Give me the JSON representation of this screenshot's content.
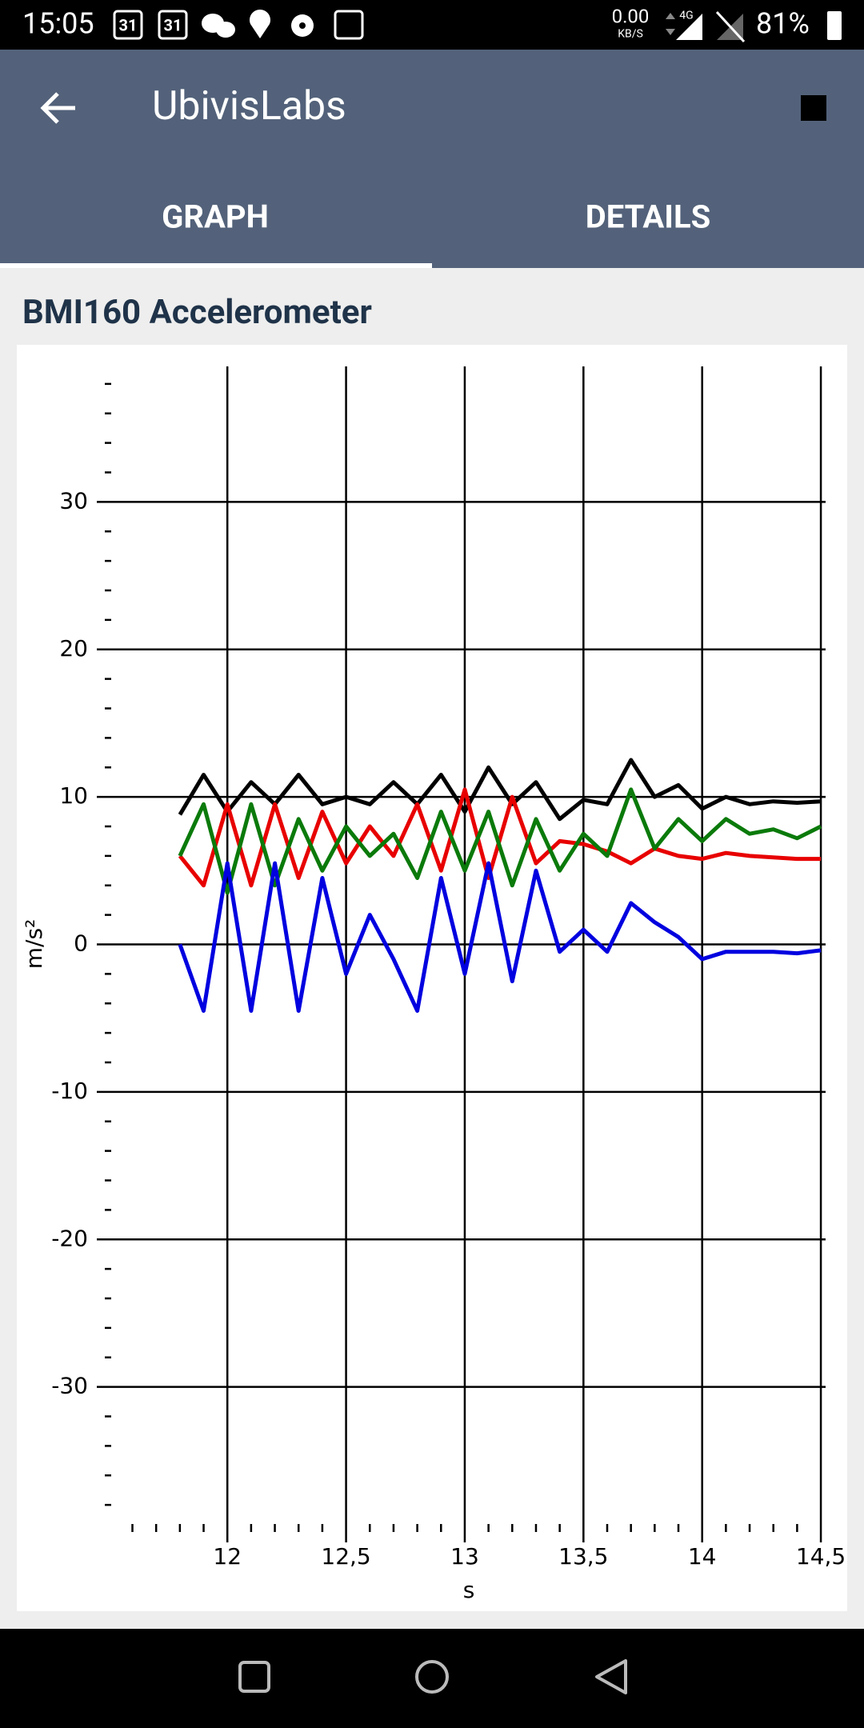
{
  "status_bar": {
    "time": "15:05",
    "calendar_day": "31",
    "net_speed": "0.00",
    "net_unit": "KB/S",
    "network": "4G",
    "battery": "81%"
  },
  "app_bar": {
    "title": "UbivisLabs"
  },
  "tabs": [
    "GRAPH",
    "DETAILS"
  ],
  "chart_data": {
    "type": "line",
    "title": "BMI160 Accelerometer",
    "xlabel": "s",
    "ylabel": "m/s²",
    "grid": true,
    "xlim": [
      11.45,
      14.52
    ],
    "ylim": [
      -40,
      40
    ],
    "xticks": [
      12,
      {
        "value": 12.5,
        "label": "12,5"
      },
      13,
      {
        "value": 13.5,
        "label": "13,5"
      },
      14,
      {
        "value": 14.5,
        "label": "14,5"
      }
    ],
    "yticks": [
      30,
      20,
      10,
      0,
      -10,
      -20,
      -30
    ],
    "xminorticks": [
      11.6,
      11.7,
      11.8,
      11.9,
      12.1,
      12.2,
      12.3,
      12.4,
      12.6,
      12.7,
      12.8,
      12.9,
      13.1,
      13.2,
      13.3,
      13.4,
      13.6,
      13.7,
      13.8,
      13.9,
      14.1,
      14.2,
      14.3,
      14.4
    ],
    "yminorticks": [
      38,
      36,
      34,
      32,
      28,
      26,
      24,
      22,
      18,
      16,
      14,
      12,
      8,
      6,
      4,
      2,
      -2,
      -4,
      -6,
      -8,
      -12,
      -14,
      -16,
      -18,
      -22,
      -24,
      -26,
      -28,
      -32,
      -34,
      -36,
      -38
    ],
    "x": [
      11.8,
      11.9,
      12.0,
      12.1,
      12.2,
      12.3,
      12.4,
      12.5,
      12.6,
      12.7,
      12.8,
      12.9,
      13.0,
      13.1,
      13.2,
      13.3,
      13.4,
      13.5,
      13.6,
      13.7,
      13.8,
      13.9,
      14.0,
      14.1,
      14.2,
      14.3,
      14.4,
      14.5
    ],
    "series": [
      {
        "color": "#000000",
        "values": [
          8.8,
          11.5,
          9,
          11,
          9.5,
          11.5,
          9.5,
          10,
          9.5,
          11,
          9.5,
          11.5,
          9,
          12,
          9.5,
          11,
          8.5,
          9.8,
          9.5,
          12.5,
          10,
          10.8,
          9.2,
          10,
          9.5,
          9.7,
          9.6,
          9.7
        ]
      },
      {
        "color": "#e80000",
        "values": [
          6,
          4,
          9.5,
          4,
          9.5,
          4.5,
          9,
          5.5,
          8,
          6,
          9.5,
          5,
          10.5,
          4.5,
          10,
          5.5,
          7,
          6.8,
          6.3,
          5.5,
          6.5,
          6,
          5.8,
          6.2,
          6,
          5.9,
          5.8,
          5.8
        ]
      },
      {
        "color": "#0a7a0a",
        "values": [
          6,
          9.5,
          3.5,
          9.5,
          4,
          8.5,
          5,
          8,
          6,
          7.5,
          4.5,
          9,
          5,
          9,
          4,
          8.5,
          5,
          7.5,
          6,
          10.5,
          6.5,
          8.5,
          7,
          8.5,
          7.5,
          7.8,
          7.2,
          8
        ]
      },
      {
        "color": "#0000e0",
        "values": [
          0,
          -4.5,
          5.5,
          -4.5,
          5.5,
          -4.5,
          4.5,
          -2,
          2,
          -1,
          -4.5,
          4.5,
          -2,
          5.5,
          -2.5,
          5,
          -0.5,
          1,
          -0.5,
          2.8,
          1.5,
          0.5,
          -1,
          -0.5,
          -0.5,
          -0.5,
          -0.6,
          -0.4
        ]
      }
    ]
  }
}
